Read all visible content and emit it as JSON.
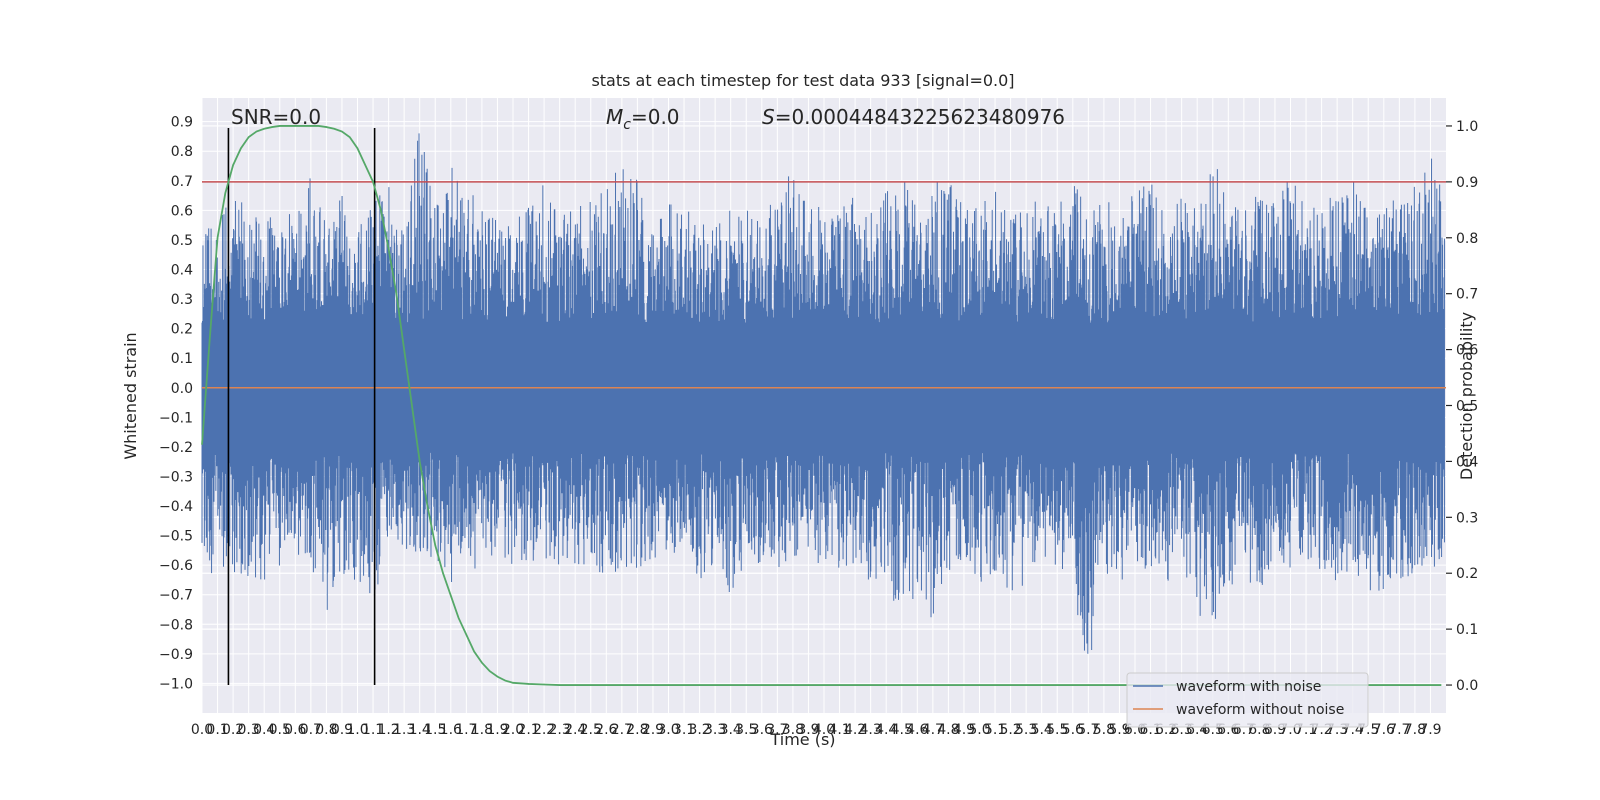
{
  "chart_data": {
    "type": "line",
    "title": "stats at each timestep for test data 933 [signal=0.0]",
    "xlabel": "Time (s)",
    "ylabel_left": "Whitened strain",
    "ylabel_right": "Detection probability",
    "xlim": [
      0.0,
      8.0
    ],
    "ylim_left": [
      -1.1,
      0.98
    ],
    "ylim_right": [
      -0.05,
      1.05
    ],
    "x_ticks": [
      0.0,
      0.1,
      0.2,
      0.3,
      0.4,
      0.5,
      0.6,
      0.7,
      0.8,
      0.9,
      1.0,
      1.1,
      1.2,
      1.3,
      1.4,
      1.5,
      1.6,
      1.7,
      1.8,
      1.9,
      2.0,
      2.1,
      2.2,
      2.3,
      2.4,
      2.5,
      2.6,
      2.7,
      2.8,
      2.9,
      3.0,
      3.1,
      3.2,
      3.3,
      3.4,
      3.5,
      3.6,
      3.7,
      3.8,
      3.9,
      4.0,
      4.1,
      4.2,
      4.3,
      4.4,
      4.5,
      4.6,
      4.7,
      4.8,
      4.9,
      5.0,
      5.1,
      5.2,
      5.3,
      5.4,
      5.5,
      5.6,
      5.7,
      5.8,
      5.9,
      6.0,
      6.1,
      6.2,
      6.3,
      6.4,
      6.5,
      6.6,
      6.7,
      6.8,
      6.9,
      7.0,
      7.1,
      7.2,
      7.3,
      7.4,
      7.5,
      7.6,
      7.7,
      7.8,
      7.9
    ],
    "y_ticks_left": [
      -1.0,
      -0.9,
      -0.8,
      -0.7,
      -0.6,
      -0.5,
      -0.4,
      -0.3,
      -0.2,
      -0.1,
      0.0,
      0.1,
      0.2,
      0.3,
      0.4,
      0.5,
      0.6,
      0.7,
      0.8,
      0.9
    ],
    "y_ticks_right": [
      0.0,
      0.1,
      0.2,
      0.3,
      0.4,
      0.5,
      0.6,
      0.7,
      0.8,
      0.9,
      1.0
    ],
    "grid": true,
    "legend_placement": "lower-right",
    "annotations": {
      "snr": "SNR=0.0",
      "mc_symbol": "M",
      "mc_sub": "c",
      "mc_value": "=0.0",
      "s_symbol": "S",
      "s_value": "=0.0004484322562348097​6"
    },
    "threshold_right": 0.9,
    "vertical_lines_x": [
      0.17,
      1.11
    ],
    "series": [
      {
        "name": "waveform with noise",
        "color": "#4c72b0",
        "note_envelope": "dense whitened strain noise; approximate amplitude envelope",
        "envelope_x": [
          0.0,
          0.1,
          0.2,
          0.3,
          0.4,
          0.5,
          0.6,
          0.7,
          0.8,
          0.9,
          1.0,
          1.1,
          1.2,
          1.3,
          1.4,
          1.5,
          1.6,
          1.7,
          1.8,
          1.9,
          2.0,
          2.1,
          2.2,
          2.3,
          2.4,
          2.5,
          2.6,
          2.7,
          2.8,
          2.9,
          3.0,
          3.1,
          3.2,
          3.3,
          3.4,
          3.5,
          3.6,
          3.7,
          3.8,
          3.9,
          4.0,
          4.1,
          4.2,
          4.3,
          4.4,
          4.5,
          4.6,
          4.7,
          4.8,
          4.9,
          5.0,
          5.1,
          5.2,
          5.3,
          5.4,
          5.5,
          5.6,
          5.7,
          5.8,
          5.9,
          6.0,
          6.1,
          6.2,
          6.3,
          6.4,
          6.5,
          6.6,
          6.7,
          6.8,
          6.9,
          7.0,
          7.1,
          7.2,
          7.3,
          7.4,
          7.5,
          7.6,
          7.7,
          7.8,
          7.9,
          8.0
        ],
        "envelope_max": [
          0.61,
          0.55,
          0.66,
          0.6,
          0.55,
          0.62,
          0.6,
          0.72,
          0.55,
          0.66,
          0.56,
          0.62,
          0.69,
          0.55,
          0.88,
          0.6,
          0.75,
          0.7,
          0.6,
          0.58,
          0.55,
          0.62,
          0.74,
          0.6,
          0.6,
          0.66,
          0.68,
          0.76,
          0.7,
          0.58,
          0.66,
          0.62,
          0.6,
          0.58,
          0.6,
          0.6,
          0.58,
          0.65,
          0.76,
          0.6,
          0.62,
          0.6,
          0.65,
          0.6,
          0.66,
          0.72,
          0.6,
          0.7,
          0.74,
          0.66,
          0.6,
          0.7,
          0.58,
          0.6,
          0.66,
          0.62,
          0.7,
          0.6,
          0.64,
          0.6,
          0.66,
          0.7,
          0.58,
          0.66,
          0.6,
          0.79,
          0.62,
          0.6,
          0.66,
          0.62,
          0.72,
          0.6,
          0.62,
          0.66,
          0.7,
          0.6,
          0.6,
          0.66,
          0.68,
          0.82,
          0.6
        ],
        "envelope_min": [
          -0.73,
          -0.6,
          -0.62,
          -0.66,
          -0.65,
          -0.6,
          -0.55,
          -0.62,
          -0.76,
          -0.66,
          -0.68,
          -0.74,
          -0.5,
          -0.55,
          -0.6,
          -0.58,
          -0.66,
          -0.6,
          -0.62,
          -0.55,
          -0.6,
          -0.58,
          -0.66,
          -0.6,
          -0.62,
          -0.58,
          -0.7,
          -0.6,
          -0.62,
          -0.58,
          -0.55,
          -0.6,
          -0.66,
          -0.6,
          -0.7,
          -0.58,
          -0.62,
          -0.6,
          -0.66,
          -0.58,
          -0.6,
          -0.62,
          -0.6,
          -0.66,
          -0.62,
          -0.85,
          -0.66,
          -0.81,
          -0.62,
          -0.6,
          -0.66,
          -0.62,
          -0.7,
          -0.66,
          -0.6,
          -0.62,
          -0.66,
          -1.0,
          -0.62,
          -0.66,
          -0.6,
          -0.62,
          -0.66,
          -0.6,
          -0.81,
          -0.82,
          -0.66,
          -0.74,
          -0.7,
          -0.62,
          -0.66,
          -0.6,
          -0.62,
          -0.66,
          -0.6,
          -0.7,
          -0.68,
          -0.66,
          -0.62,
          -0.6,
          -0.62
        ]
      },
      {
        "name": "waveform without noise",
        "color": "#dd8452",
        "x": [
          0.0,
          8.0
        ],
        "y": [
          0.0,
          0.0
        ]
      },
      {
        "name": "",
        "color": "#55a868",
        "axis": "right",
        "x": [
          0.0,
          0.05,
          0.1,
          0.15,
          0.2,
          0.25,
          0.3,
          0.35,
          0.4,
          0.45,
          0.5,
          0.55,
          0.6,
          0.65,
          0.7,
          0.75,
          0.8,
          0.85,
          0.9,
          0.95,
          1.0,
          1.05,
          1.1,
          1.15,
          1.2,
          1.25,
          1.3,
          1.35,
          1.4,
          1.45,
          1.5,
          1.55,
          1.6,
          1.65,
          1.7,
          1.75,
          1.8,
          1.85,
          1.9,
          1.95,
          2.0,
          2.1,
          2.2,
          2.3,
          2.5,
          3.0,
          4.0,
          5.0,
          6.0,
          7.0,
          7.97
        ],
        "y": [
          0.43,
          0.62,
          0.8,
          0.88,
          0.93,
          0.96,
          0.98,
          0.99,
          0.995,
          0.998,
          1.0,
          1.0,
          1.0,
          1.0,
          1.0,
          1.0,
          0.998,
          0.995,
          0.99,
          0.98,
          0.96,
          0.93,
          0.9,
          0.85,
          0.78,
          0.7,
          0.6,
          0.5,
          0.4,
          0.32,
          0.25,
          0.2,
          0.16,
          0.12,
          0.09,
          0.06,
          0.04,
          0.025,
          0.015,
          0.008,
          0.004,
          0.002,
          0.001,
          0.0,
          0.0,
          0.0,
          0.0,
          0.0,
          0.0,
          0.0,
          0.0
        ]
      }
    ],
    "colors": {
      "background": "#eaeaf2",
      "grid": "#ffffff",
      "threshold": "#c44e52",
      "vlines": "#000000"
    }
  }
}
